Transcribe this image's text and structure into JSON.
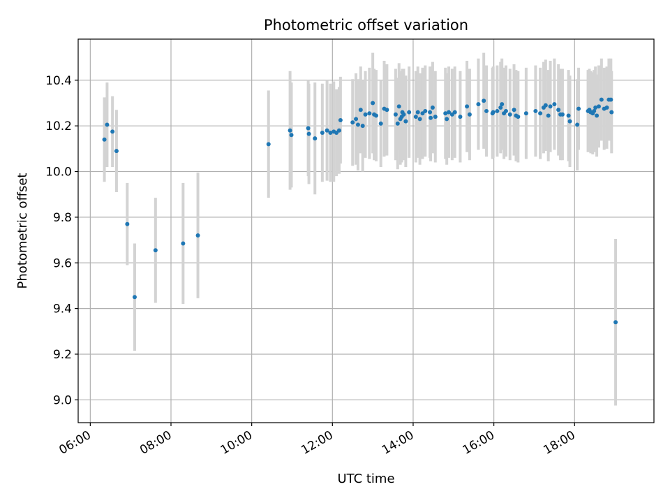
{
  "chart_data": {
    "type": "scatter",
    "title": "Photometric offset variation",
    "xlabel": "UTC time",
    "ylabel": "Photometric offset",
    "x_unit": "UTC hour of day",
    "xlim": [
      "05:42",
      "19:58"
    ],
    "ylim": [
      8.9,
      10.58
    ],
    "xticks": [
      "06:00",
      "08:00",
      "10:00",
      "12:00",
      "14:00",
      "16:00",
      "18:00"
    ],
    "yticks": [
      "9.0",
      "9.2",
      "9.4",
      "9.6",
      "9.8",
      "10.0",
      "10.2",
      "10.4"
    ],
    "grid": true,
    "legend": "none",
    "colors": {
      "point": "#1f77b4",
      "errorbar": "#d3d3d3",
      "grid": "#b0b0b0"
    },
    "series": [
      {
        "x": [
          "06:21",
          "06:25",
          "06:33",
          "06:39",
          "06:55",
          "07:06",
          "07:37",
          "08:18",
          "08:40",
          "10:25",
          "10:57",
          "10:59",
          "11:24",
          "11:25",
          "11:34",
          "11:45",
          "11:52",
          "11:57",
          "12:02",
          "12:06",
          "12:10",
          "12:12",
          "12:30",
          "12:35",
          "12:38",
          "12:42",
          "12:45",
          "12:49",
          "12:55",
          "13:00",
          "13:02",
          "13:05",
          "13:12",
          "13:17",
          "13:21",
          "13:34",
          "13:37",
          "13:39",
          "13:41",
          "13:43",
          "13:44",
          "13:46",
          "13:49",
          "13:54",
          "14:04",
          "14:07",
          "14:10",
          "14:14",
          "14:18",
          "14:25",
          "14:26",
          "14:29",
          "14:33",
          "14:48",
          "14:50",
          "14:53",
          "14:58",
          "15:02",
          "15:10",
          "15:20",
          "15:24",
          "15:37",
          "15:45",
          "15:49",
          "15:58",
          "15:59",
          "16:05",
          "16:10",
          "16:12",
          "16:15",
          "16:18",
          "16:24",
          "16:30",
          "16:33",
          "16:36",
          "16:48",
          "17:02",
          "17:09",
          "17:14",
          "17:17",
          "17:21",
          "17:24",
          "17:30",
          "17:36",
          "17:39",
          "17:42",
          "17:51",
          "17:53",
          "18:04",
          "18:06",
          "18:20",
          "18:22",
          "18:24",
          "18:27",
          "18:29",
          "18:31",
          "18:33",
          "18:36",
          "18:40",
          "18:44",
          "18:48",
          "18:51",
          "18:54",
          "18:55",
          "19:01"
        ],
        "y": [
          10.14,
          10.205,
          10.175,
          10.09,
          9.77,
          9.45,
          9.655,
          9.685,
          9.72,
          10.12,
          10.18,
          10.16,
          10.19,
          10.165,
          10.145,
          10.17,
          10.18,
          10.17,
          10.175,
          10.17,
          10.18,
          10.225,
          10.215,
          10.23,
          10.205,
          10.27,
          10.2,
          10.25,
          10.255,
          10.3,
          10.25,
          10.245,
          10.21,
          10.275,
          10.27,
          10.25,
          10.21,
          10.285,
          10.23,
          10.24,
          10.26,
          10.25,
          10.22,
          10.26,
          10.24,
          10.26,
          10.23,
          10.255,
          10.265,
          10.26,
          10.235,
          10.28,
          10.24,
          10.255,
          10.23,
          10.26,
          10.25,
          10.26,
          10.24,
          10.285,
          10.25,
          10.295,
          10.31,
          10.265,
          10.255,
          10.26,
          10.265,
          10.28,
          10.295,
          10.255,
          10.265,
          10.25,
          10.27,
          10.245,
          10.24,
          10.255,
          10.265,
          10.255,
          10.28,
          10.29,
          10.245,
          10.285,
          10.295,
          10.27,
          10.25,
          10.25,
          10.245,
          10.22,
          10.205,
          10.275,
          10.265,
          10.27,
          10.26,
          10.255,
          10.265,
          10.28,
          10.245,
          10.285,
          10.315,
          10.275,
          10.28,
          10.315,
          10.315,
          10.26,
          9.34
        ],
        "yerr": [
          0.185,
          0.185,
          0.155,
          0.18,
          0.18,
          0.235,
          0.23,
          0.265,
          0.275,
          0.235,
          0.26,
          0.23,
          0.21,
          0.22,
          0.245,
          0.215,
          0.22,
          0.215,
          0.22,
          0.19,
          0.19,
          0.19,
          0.19,
          0.2,
          0.2,
          0.19,
          0.2,
          0.19,
          0.2,
          0.22,
          0.2,
          0.2,
          0.19,
          0.21,
          0.2,
          0.2,
          0.2,
          0.19,
          0.2,
          0.2,
          0.19,
          0.2,
          0.2,
          0.2,
          0.2,
          0.2,
          0.2,
          0.2,
          0.2,
          0.2,
          0.19,
          0.2,
          0.2,
          0.2,
          0.2,
          0.2,
          0.2,
          0.2,
          0.2,
          0.2,
          0.2,
          0.2,
          0.21,
          0.2,
          0.2,
          0.2,
          0.2,
          0.2,
          0.2,
          0.2,
          0.2,
          0.2,
          0.2,
          0.2,
          0.2,
          0.2,
          0.2,
          0.2,
          0.2,
          0.2,
          0.2,
          0.2,
          0.2,
          0.2,
          0.2,
          0.2,
          0.2,
          0.2,
          0.2,
          0.18,
          0.18,
          0.18,
          0.18,
          0.18,
          0.18,
          0.18,
          0.18,
          0.18,
          0.18,
          0.18,
          0.18,
          0.18,
          0.18,
          0.18,
          0.365
        ]
      }
    ]
  }
}
